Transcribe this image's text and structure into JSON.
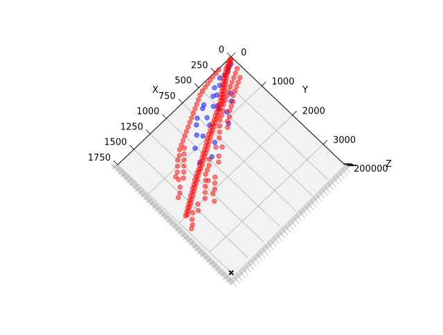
{
  "chart_data": {
    "type": "scatter",
    "projection": "3d",
    "view": "top-down, rotated 45°",
    "title": "",
    "axes": {
      "x": {
        "label": "X",
        "lim": [
          0,
          1750
        ],
        "ticks": [
          "0",
          "250",
          "500",
          "750",
          "1000",
          "1250",
          "1500",
          "1750"
        ]
      },
      "y": {
        "label": "Y",
        "lim": [
          0,
          3700
        ],
        "ticks": [
          "0",
          "1000",
          "2000",
          "3000"
        ]
      },
      "z": {
        "label": "Z",
        "tick_cluster_text": "200000"
      }
    },
    "grid": true,
    "pane_color": "#f2f2f2",
    "series": [
      {
        "color": "#0000ff",
        "marker": "o",
        "alpha": 0.5,
        "points": [
          [
            60,
            120
          ],
          [
            100,
            140
          ],
          [
            140,
            190
          ],
          [
            200,
            220
          ],
          [
            260,
            180
          ],
          [
            320,
            300
          ],
          [
            380,
            260
          ],
          [
            420,
            420
          ],
          [
            460,
            380
          ],
          [
            500,
            620
          ],
          [
            520,
            700
          ],
          [
            540,
            560
          ],
          [
            600,
            380
          ],
          [
            640,
            420
          ],
          [
            680,
            650
          ],
          [
            720,
            820
          ],
          [
            760,
            500
          ],
          [
            820,
            1200
          ],
          [
            860,
            900
          ],
          [
            900,
            780
          ],
          [
            960,
            1400
          ],
          [
            1020,
            980
          ],
          [
            1100,
            1300
          ],
          [
            360,
            760
          ],
          [
            300,
            620
          ],
          [
            560,
            1100
          ],
          [
            480,
            880
          ],
          [
            820,
            600
          ]
        ]
      },
      {
        "color": "#ff0000",
        "marker": "o",
        "alpha": 0.5,
        "points": [
          [
            20,
            20
          ],
          [
            30,
            60
          ],
          [
            50,
            40
          ],
          [
            60,
            90
          ],
          [
            80,
            70
          ],
          [
            90,
            130
          ],
          [
            110,
            100
          ],
          [
            120,
            160
          ],
          [
            140,
            130
          ],
          [
            150,
            210
          ],
          [
            170,
            180
          ],
          [
            180,
            240
          ],
          [
            200,
            200
          ],
          [
            210,
            290
          ],
          [
            230,
            260
          ],
          [
            240,
            330
          ],
          [
            260,
            300
          ],
          [
            270,
            380
          ],
          [
            290,
            350
          ],
          [
            300,
            420
          ],
          [
            320,
            390
          ],
          [
            330,
            470
          ],
          [
            350,
            440
          ],
          [
            360,
            520
          ],
          [
            380,
            480
          ],
          [
            390,
            560
          ],
          [
            410,
            530
          ],
          [
            420,
            610
          ],
          [
            440,
            580
          ],
          [
            460,
            650
          ],
          [
            480,
            620
          ],
          [
            500,
            700
          ],
          [
            520,
            660
          ],
          [
            540,
            740
          ],
          [
            560,
            710
          ],
          [
            580,
            790
          ],
          [
            600,
            750
          ],
          [
            620,
            830
          ],
          [
            640,
            800
          ],
          [
            660,
            880
          ],
          [
            680,
            840
          ],
          [
            700,
            920
          ],
          [
            720,
            880
          ],
          [
            740,
            960
          ],
          [
            760,
            930
          ],
          [
            780,
            1000
          ],
          [
            800,
            960
          ],
          [
            820,
            1050
          ],
          [
            840,
            1010
          ],
          [
            860,
            1100
          ],
          [
            880,
            1060
          ],
          [
            900,
            1150
          ],
          [
            920,
            1110
          ],
          [
            940,
            1200
          ],
          [
            960,
            1160
          ],
          [
            980,
            1240
          ],
          [
            1000,
            1200
          ],
          [
            1020,
            1280
          ],
          [
            1040,
            1250
          ],
          [
            1060,
            1330
          ],
          [
            1080,
            1300
          ],
          [
            1100,
            1380
          ],
          [
            1120,
            1340
          ],
          [
            1140,
            1420
          ],
          [
            1160,
            1400
          ],
          [
            1180,
            1460
          ],
          [
            1200,
            1430
          ],
          [
            1220,
            1500
          ],
          [
            1240,
            1480
          ],
          [
            1260,
            1560
          ],
          [
            1280,
            1520
          ],
          [
            1300,
            1600
          ],
          [
            1320,
            1580
          ],
          [
            1340,
            1650
          ],
          [
            1360,
            1620
          ],
          [
            1380,
            1700
          ],
          [
            1400,
            1680
          ],
          [
            1420,
            1760
          ],
          [
            1440,
            1720
          ],
          [
            1460,
            1800
          ],
          [
            1480,
            1780
          ],
          [
            1500,
            1850
          ],
          [
            1520,
            1830
          ],
          [
            1540,
            1900
          ],
          [
            1560,
            1880
          ],
          [
            1580,
            1950
          ],
          [
            1600,
            1930
          ],
          [
            1620,
            2000
          ],
          [
            1640,
            1980
          ],
          [
            1000,
            1400
          ],
          [
            1050,
            1500
          ],
          [
            1100,
            1550
          ],
          [
            1150,
            1600
          ],
          [
            1200,
            1700
          ],
          [
            1180,
            1750
          ],
          [
            1250,
            1800
          ],
          [
            1300,
            1900
          ],
          [
            1350,
            2000
          ],
          [
            1450,
            1980
          ],
          [
            1500,
            2100
          ],
          [
            1560,
            2050
          ],
          [
            1620,
            2150
          ],
          [
            1660,
            2250
          ],
          [
            1700,
            2300
          ],
          [
            1100,
            800
          ],
          [
            1150,
            900
          ],
          [
            1200,
            1000
          ],
          [
            1250,
            1100
          ],
          [
            1300,
            1200
          ],
          [
            1350,
            1300
          ],
          [
            1400,
            1250
          ],
          [
            1450,
            1400
          ],
          [
            1500,
            1500
          ],
          [
            1550,
            1550
          ],
          [
            1100,
            1800
          ],
          [
            1150,
            1900
          ],
          [
            1200,
            2000
          ],
          [
            1250,
            2050
          ],
          [
            1300,
            2200
          ],
          [
            900,
            1500
          ],
          [
            950,
            1600
          ],
          [
            850,
            1300
          ],
          [
            800,
            1400
          ],
          [
            750,
            1200
          ],
          [
            700,
            1100
          ],
          [
            650,
            1000
          ],
          [
            600,
            900
          ],
          [
            550,
            850
          ],
          [
            500,
            800
          ],
          [
            450,
            700
          ],
          [
            400,
            650
          ],
          [
            350,
            600
          ],
          [
            300,
            550
          ],
          [
            250,
            500
          ],
          [
            200,
            450
          ],
          [
            150,
            400
          ],
          [
            100,
            350
          ],
          [
            50,
            300
          ],
          [
            100,
            500
          ],
          [
            150,
            550
          ],
          [
            200,
            600
          ],
          [
            250,
            650
          ],
          [
            300,
            700
          ],
          [
            350,
            800
          ],
          [
            400,
            850
          ],
          [
            450,
            900
          ],
          [
            500,
            1000
          ],
          [
            550,
            1050
          ],
          [
            600,
            1150
          ],
          [
            1300,
            1000
          ],
          [
            1350,
            1100
          ],
          [
            1400,
            1150
          ],
          [
            1250,
            900
          ],
          [
            1200,
            850
          ],
          [
            1150,
            750
          ],
          [
            1100,
            700
          ],
          [
            1050,
            650
          ],
          [
            1000,
            600
          ],
          [
            950,
            550
          ],
          [
            900,
            500
          ],
          [
            850,
            450
          ],
          [
            800,
            400
          ],
          [
            750,
            350
          ],
          [
            700,
            300
          ],
          [
            650,
            250
          ],
          [
            600,
            200
          ],
          [
            550,
            150
          ],
          [
            500,
            120
          ],
          [
            450,
            100
          ],
          [
            400,
            80
          ],
          [
            350,
            60
          ],
          [
            300,
            40
          ],
          [
            250,
            30
          ],
          [
            200,
            20
          ]
        ]
      },
      {
        "color": "#000000",
        "marker": "x",
        "points": [
          [
            1750,
            3700
          ]
        ]
      }
    ]
  }
}
